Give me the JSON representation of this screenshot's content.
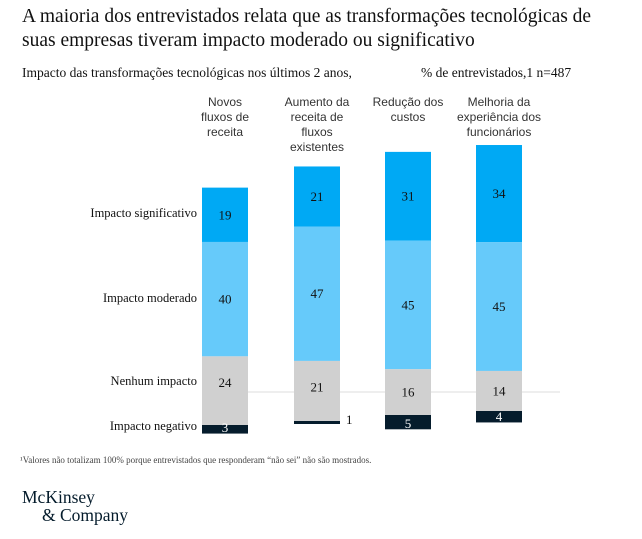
{
  "colors": {
    "significativo": "#00A9F4",
    "moderado": "#66CAFA",
    "nenhum": "#D0D0D0",
    "negativo": "#051C2C",
    "gridline": "#EEEEEE"
  },
  "footnote": "¹Valores não totalizam 100% porque entrevistados que responderam “não sei” não são mostrados.",
  "logo": {
    "line1": "McKinsey",
    "line2": "& Company"
  },
  "chart_data": {
    "type": "bar",
    "stacked": true,
    "title": "A maioria dos entrevistados relata que as transformações tecnológicas de suas empresas tiveram impacto moderado ou significativo",
    "subtitle": "Impacto das transformações tecnológicas nos últimos 2 anos,",
    "unit_label": "% de entrevistados,1 n=487",
    "xlabel": "",
    "ylabel": "% de entrevistados",
    "categories": [
      "Novos fluxos de receita",
      "Aumento da receita de fluxos existentes",
      "Redução dos custos",
      "Melhoria da experiência dos funcionários"
    ],
    "category_lines": [
      [
        "Novos",
        "fluxos de",
        "receita"
      ],
      [
        "Aumento da",
        "receita de",
        "fluxos",
        "existentes"
      ],
      [
        "Redução dos",
        "custos"
      ],
      [
        "Melhoria da",
        "experiência dos",
        "funcionários"
      ]
    ],
    "series": [
      {
        "key": "significativo",
        "name": "Impacto significativo",
        "values": [
          19,
          21,
          31,
          34
        ]
      },
      {
        "key": "moderado",
        "name": "Impacto moderado",
        "values": [
          40,
          47,
          45,
          45
        ]
      },
      {
        "key": "nenhum",
        "name": "Nenhum impacto",
        "values": [
          24,
          21,
          16,
          14
        ]
      },
      {
        "key": "negativo",
        "name": "Impacto negativo",
        "values": [
          3,
          1,
          5,
          4
        ]
      }
    ],
    "legend": "left (row labels beside first bar)",
    "grid": false
  }
}
